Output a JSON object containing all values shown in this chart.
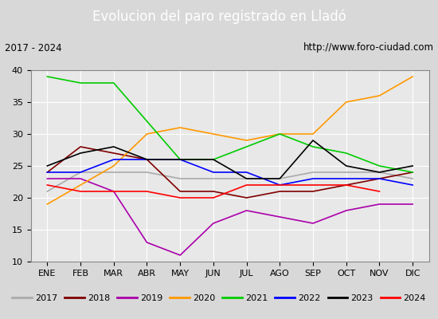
{
  "title": "Evolucion del paro registrado en Lladó",
  "subtitle_left": "2017 - 2024",
  "subtitle_right": "http://www.foro-ciudad.com",
  "months": [
    "ENE",
    "FEB",
    "MAR",
    "ABR",
    "MAY",
    "JUN",
    "JUL",
    "AGO",
    "SEP",
    "OCT",
    "NOV",
    "DIC"
  ],
  "ylim": [
    10,
    40
  ],
  "yticks": [
    10,
    15,
    20,
    25,
    30,
    35,
    40
  ],
  "series": {
    "2017": {
      "color": "#aaaaaa",
      "data": [
        21,
        24,
        24,
        24,
        23,
        23,
        23,
        23,
        24,
        24,
        24,
        23
      ]
    },
    "2018": {
      "color": "#800000",
      "data": [
        24,
        28,
        27,
        26,
        21,
        21,
        20,
        21,
        21,
        22,
        23,
        24
      ]
    },
    "2019": {
      "color": "#aa00aa",
      "data": [
        23,
        23,
        21,
        13,
        11,
        16,
        18,
        17,
        16,
        18,
        19,
        19
      ]
    },
    "2020": {
      "color": "#ff9900",
      "data": [
        19,
        22,
        25,
        30,
        31,
        30,
        29,
        30,
        30,
        35,
        36,
        39
      ]
    },
    "2021": {
      "color": "#00cc00",
      "data": [
        39,
        38,
        38,
        32,
        26,
        26,
        28,
        30,
        28,
        27,
        25,
        24
      ]
    },
    "2022": {
      "color": "#0000ff",
      "data": [
        24,
        24,
        26,
        26,
        26,
        24,
        24,
        22,
        23,
        23,
        23,
        22
      ]
    },
    "2023": {
      "color": "#000000",
      "data": [
        25,
        27,
        28,
        26,
        26,
        26,
        23,
        23,
        29,
        25,
        24,
        25
      ]
    },
    "2024": {
      "color": "#ff0000",
      "data": [
        22,
        21,
        21,
        21,
        20,
        20,
        22,
        22,
        22,
        22,
        21,
        null
      ]
    }
  },
  "background_color": "#d8d8d8",
  "plot_background": "#e8e8e8",
  "title_bg": "#4472c4",
  "title_color": "#ffffff",
  "title_fontsize": 12,
  "label_fontsize": 8,
  "legend_fontsize": 8
}
